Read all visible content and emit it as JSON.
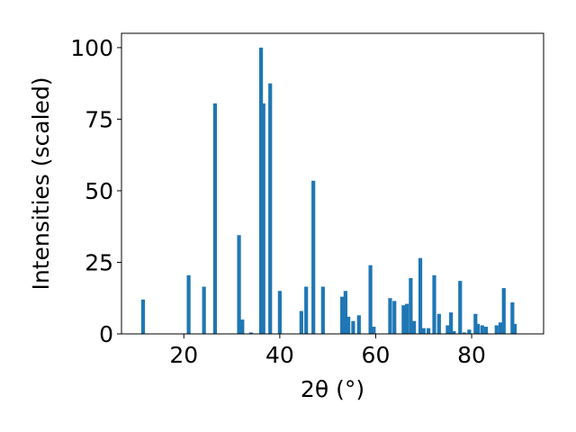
{
  "chart_data": {
    "type": "bar",
    "xlabel": "2θ (°)",
    "ylabel": "Intensities (scaled)",
    "xlim": [
      7,
      95
    ],
    "ylim": [
      0,
      105
    ],
    "bar_color": "#1f77b4",
    "x_ticks": [
      20,
      40,
      60,
      80
    ],
    "y_ticks": [
      0,
      25,
      50,
      75,
      100
    ],
    "x": [
      11.5,
      21.0,
      24.2,
      26.5,
      31.5,
      32.2,
      34.0,
      36.1,
      36.6,
      38.0,
      40.0,
      44.5,
      45.5,
      47.0,
      49.0,
      53.0,
      53.7,
      54.3,
      55.3,
      56.5,
      58.9,
      59.6,
      63.0,
      63.9,
      65.8,
      66.5,
      67.3,
      68.0,
      69.3,
      70.0,
      71.0,
      72.2,
      73.2,
      75.0,
      75.7,
      76.3,
      77.6,
      78.5,
      79.5,
      80.8,
      81.3,
      82.2,
      83.0,
      85.2,
      86.0,
      86.7,
      88.5,
      89.0
    ],
    "values": [
      12,
      20.5,
      16.5,
      80.5,
      34.5,
      5,
      0.5,
      100,
      80.5,
      87.5,
      15,
      8,
      16.5,
      53.5,
      16.5,
      13,
      15,
      6,
      4.5,
      6.5,
      24,
      2.5,
      12.5,
      11.5,
      10,
      10.5,
      19.5,
      4.5,
      26.5,
      2,
      2,
      20.5,
      7,
      3,
      7.5,
      1,
      18.5,
      0.5,
      1.5,
      7,
      3.5,
      3,
      2.5,
      3,
      4,
      16,
      11,
      3.5
    ]
  }
}
